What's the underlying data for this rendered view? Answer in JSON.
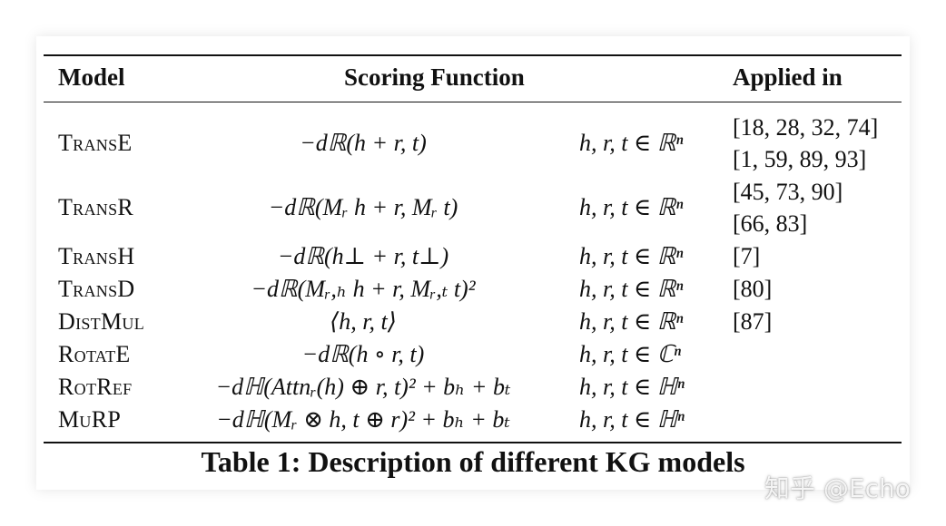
{
  "table": {
    "headers": {
      "model": "Model",
      "scoring": "Scoring Function",
      "applied": "Applied in"
    },
    "rows": [
      {
        "model": "TransE",
        "func": "−dℝ(h + r, t)",
        "space": "h, r, t ∈ ℝⁿ",
        "refs": [
          "[18, 28, 32, 74]",
          "[1, 59, 89, 93]"
        ]
      },
      {
        "model": "TransR",
        "func": "−dℝ(Mᵣ h + r, Mᵣ t)",
        "space": "h, r, t ∈ ℝⁿ",
        "refs": [
          "[45, 73, 90]",
          "[66, 83]"
        ]
      },
      {
        "model": "TransH",
        "func": "−dℝ(h⊥ + r, t⊥)",
        "space": "h, r, t ∈ ℝⁿ",
        "refs": [
          "[7]"
        ]
      },
      {
        "model": "TransD",
        "func": "−dℝ(Mᵣ,ₕ h + r, Mᵣ,ₜ t)²",
        "space": "h, r, t ∈ ℝⁿ",
        "refs": [
          "[80]"
        ]
      },
      {
        "model": "DistMul",
        "func": "⟨h, r, t⟩",
        "space": "h, r, t ∈ ℝⁿ",
        "refs": [
          "[87]"
        ]
      },
      {
        "model": "RotatE",
        "func": "−dℝ(h ∘ r, t)",
        "space": "h, r, t ∈ ℂⁿ",
        "refs": []
      },
      {
        "model": "RotRef",
        "func": "−dℍ(Attnᵣ(h) ⊕ r, t)² + bₕ + bₜ",
        "space": "h, r, t ∈ ℍⁿ",
        "refs": []
      },
      {
        "model": "MuRP",
        "func": "−dℍ(Mᵣ ⊗ h, t ⊕ r)² + bₕ + bₜ",
        "space": "h, r, t ∈ ℍⁿ",
        "refs": []
      }
    ]
  },
  "caption": "Table 1: Description of different KG models",
  "watermark": "知乎 @Echo"
}
